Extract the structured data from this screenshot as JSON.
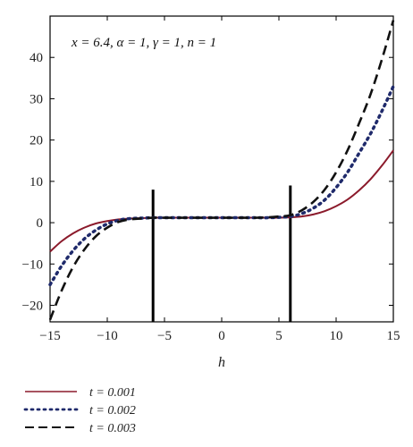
{
  "chart_data": {
    "type": "line",
    "title": "",
    "xlabel": "h",
    "ylabel": "",
    "xlim": [
      -15,
      15
    ],
    "ylim": [
      -24,
      50
    ],
    "xticks": [
      -15,
      -10,
      -5,
      0,
      5,
      10,
      15
    ],
    "yticks": [
      -20,
      -10,
      0,
      10,
      20,
      30,
      40
    ],
    "grid": false,
    "annotation": "x = 6.4, α = 1, γ = 1, n = 1",
    "vertical_markers": [
      {
        "x": -6,
        "y_from": -24,
        "y_to": 8
      },
      {
        "x": 6,
        "y_from": -24,
        "y_to": 9
      }
    ],
    "legend_position": "below",
    "series": [
      {
        "name": "t = 0.001",
        "style": "solid",
        "color": "#8B1A2B",
        "x": [
          -15,
          -14,
          -13,
          -12,
          -11,
          -10,
          -9,
          -8,
          -7,
          -6,
          -5,
          -4,
          -3,
          -2,
          -1,
          0,
          1,
          2,
          3,
          4,
          5,
          6,
          7,
          8,
          9,
          10,
          11,
          12,
          13,
          14,
          15
        ],
        "y": [
          -7,
          -4.5,
          -2.6,
          -1.2,
          -0.2,
          0.4,
          0.8,
          1.0,
          1.1,
          1.2,
          1.2,
          1.2,
          1.2,
          1.2,
          1.2,
          1.2,
          1.2,
          1.2,
          1.2,
          1.2,
          1.2,
          1.3,
          1.5,
          2.0,
          2.8,
          4.0,
          5.6,
          7.8,
          10.5,
          13.8,
          17.5
        ]
      },
      {
        "name": "t = 0.002",
        "style": "dotted",
        "color": "#1F2A6B",
        "x": [
          -15,
          -14,
          -13,
          -12,
          -11,
          -10,
          -9,
          -8,
          -7,
          -6,
          -5,
          -4,
          -3,
          -2,
          -1,
          0,
          1,
          2,
          3,
          4,
          5,
          6,
          7,
          8,
          9,
          10,
          11,
          12,
          13,
          14,
          15
        ],
        "y": [
          -15,
          -10.5,
          -6.8,
          -3.9,
          -1.8,
          -0.3,
          0.6,
          1.0,
          1.1,
          1.2,
          1.2,
          1.2,
          1.2,
          1.2,
          1.2,
          1.2,
          1.2,
          1.2,
          1.2,
          1.2,
          1.3,
          1.5,
          2.2,
          3.5,
          5.5,
          8.5,
          12.2,
          16.8,
          21.5,
          27.0,
          33.0
        ]
      },
      {
        "name": "t = 0.003",
        "style": "dashed",
        "color": "#111111",
        "x": [
          -15,
          -14,
          -13,
          -12,
          -11,
          -10,
          -9,
          -8,
          -7,
          -6,
          -5,
          -4,
          -3,
          -2,
          -1,
          0,
          1,
          2,
          3,
          4,
          5,
          6,
          7,
          8,
          9,
          10,
          11,
          12,
          13,
          14,
          15
        ],
        "y": [
          -23.5,
          -16.5,
          -10.8,
          -6.5,
          -3.3,
          -1.2,
          0.2,
          0.8,
          1.0,
          1.2,
          1.2,
          1.2,
          1.2,
          1.2,
          1.2,
          1.2,
          1.2,
          1.2,
          1.2,
          1.3,
          1.5,
          1.8,
          3.0,
          5.0,
          8.0,
          12.2,
          17.5,
          24.0,
          31.0,
          39.5,
          49.0
        ]
      }
    ]
  }
}
